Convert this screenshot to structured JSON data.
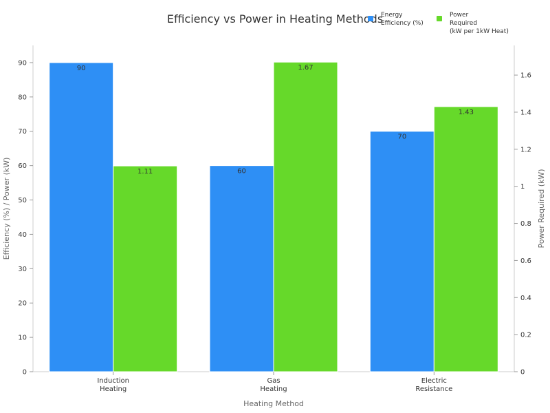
{
  "chart_data": {
    "type": "bar",
    "title": "Efficiency vs Power in Heating Methods",
    "xlabel": "Heating Method",
    "ylabel": "Efficiency (%) / Power (kW)",
    "y2label": "Power Required (kW)",
    "categories": [
      [
        "Induction",
        "Heating"
      ],
      [
        "Gas",
        "Heating"
      ],
      [
        "Electric",
        "Resistance"
      ]
    ],
    "ylim": [
      0,
      95
    ],
    "y2lim": [
      0,
      1.76
    ],
    "yticks": [
      "0",
      "10",
      "20",
      "30",
      "40",
      "50",
      "60",
      "70",
      "80",
      "90"
    ],
    "y2ticks": [
      "0",
      "0.2",
      "0.4",
      "0.6",
      "0.8",
      "1",
      "1.2",
      "1.4",
      "1.6"
    ],
    "series": [
      {
        "name": [
          "Energy",
          "Efficiency (%)"
        ],
        "axis": "left",
        "color": "#2e8ff5",
        "values": [
          90,
          60,
          70
        ],
        "labels": [
          "90",
          "60",
          "70"
        ]
      },
      {
        "name": [
          "Power",
          "Required",
          "(kW per 1kW Heat)"
        ],
        "axis": "right",
        "color": "#66d92a",
        "values": [
          1.11,
          1.67,
          1.43
        ],
        "labels": [
          "1.11",
          "1.67",
          "1.43"
        ]
      }
    ],
    "legend_position": "top-right",
    "grid": false
  }
}
